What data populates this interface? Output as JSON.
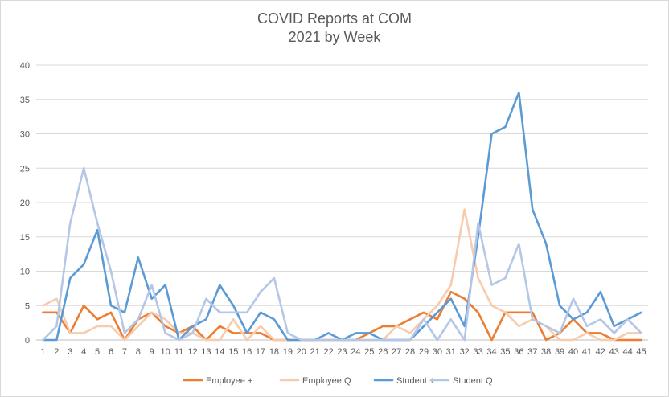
{
  "chart_data": {
    "type": "line",
    "title_lines": [
      "COVID Reports at COM",
      "2021 by Week"
    ],
    "xlabel": "",
    "ylabel": "",
    "ylim": [
      0,
      40
    ],
    "yticks": [
      0,
      5,
      10,
      15,
      20,
      25,
      30,
      35,
      40
    ],
    "x": [
      1,
      2,
      3,
      4,
      5,
      6,
      7,
      8,
      9,
      10,
      11,
      12,
      13,
      14,
      15,
      16,
      17,
      18,
      19,
      20,
      21,
      22,
      23,
      24,
      25,
      26,
      27,
      28,
      29,
      30,
      31,
      32,
      33,
      34,
      35,
      36,
      37,
      38,
      39,
      40,
      41,
      42,
      43,
      44,
      45
    ],
    "grid": "horizontal",
    "legend_position": "bottom",
    "series": [
      {
        "name": "Employee +",
        "color": "#ed7d31",
        "values": [
          4,
          4,
          1,
          5,
          3,
          4,
          0,
          3,
          4,
          2,
          1,
          2,
          0,
          2,
          1,
          1,
          1,
          0,
          0,
          0,
          0,
          0,
          0,
          0,
          1,
          2,
          2,
          3,
          4,
          3,
          7,
          6,
          4,
          0,
          4,
          4,
          4,
          0,
          1,
          3,
          1,
          1,
          0,
          0,
          0
        ]
      },
      {
        "name": "Employee Q",
        "color": "#f8cbad",
        "values": [
          5,
          6,
          1,
          1,
          2,
          2,
          0,
          2,
          4,
          3,
          1,
          1,
          0,
          0,
          3,
          0,
          2,
          0,
          0,
          0,
          0,
          0,
          0,
          0,
          0,
          0,
          2,
          1,
          3,
          5,
          8,
          19,
          9,
          5,
          4,
          2,
          3,
          2,
          0,
          0,
          1,
          0,
          0,
          1,
          1
        ]
      },
      {
        "name": "Student +",
        "color": "#5b9bd5",
        "values": [
          0,
          0,
          9,
          11,
          16,
          5,
          4,
          12,
          6,
          8,
          0,
          2,
          3,
          8,
          5,
          1,
          4,
          3,
          0,
          0,
          0,
          1,
          0,
          1,
          1,
          0,
          0,
          0,
          2,
          4,
          6,
          2,
          15,
          30,
          31,
          36,
          19,
          14,
          5,
          3,
          4,
          7,
          2,
          3,
          4
        ]
      },
      {
        "name": "Student Q",
        "color": "#b4c7e7",
        "values": [
          0,
          2,
          17,
          25,
          17,
          10,
          1,
          3,
          8,
          1,
          0,
          1,
          6,
          4,
          4,
          4,
          7,
          9,
          1,
          0,
          0,
          0,
          0,
          0,
          0,
          0,
          0,
          0,
          3,
          0,
          3,
          0,
          17,
          8,
          9,
          14,
          3,
          2,
          1,
          6,
          2,
          3,
          1,
          3,
          1
        ]
      }
    ]
  }
}
